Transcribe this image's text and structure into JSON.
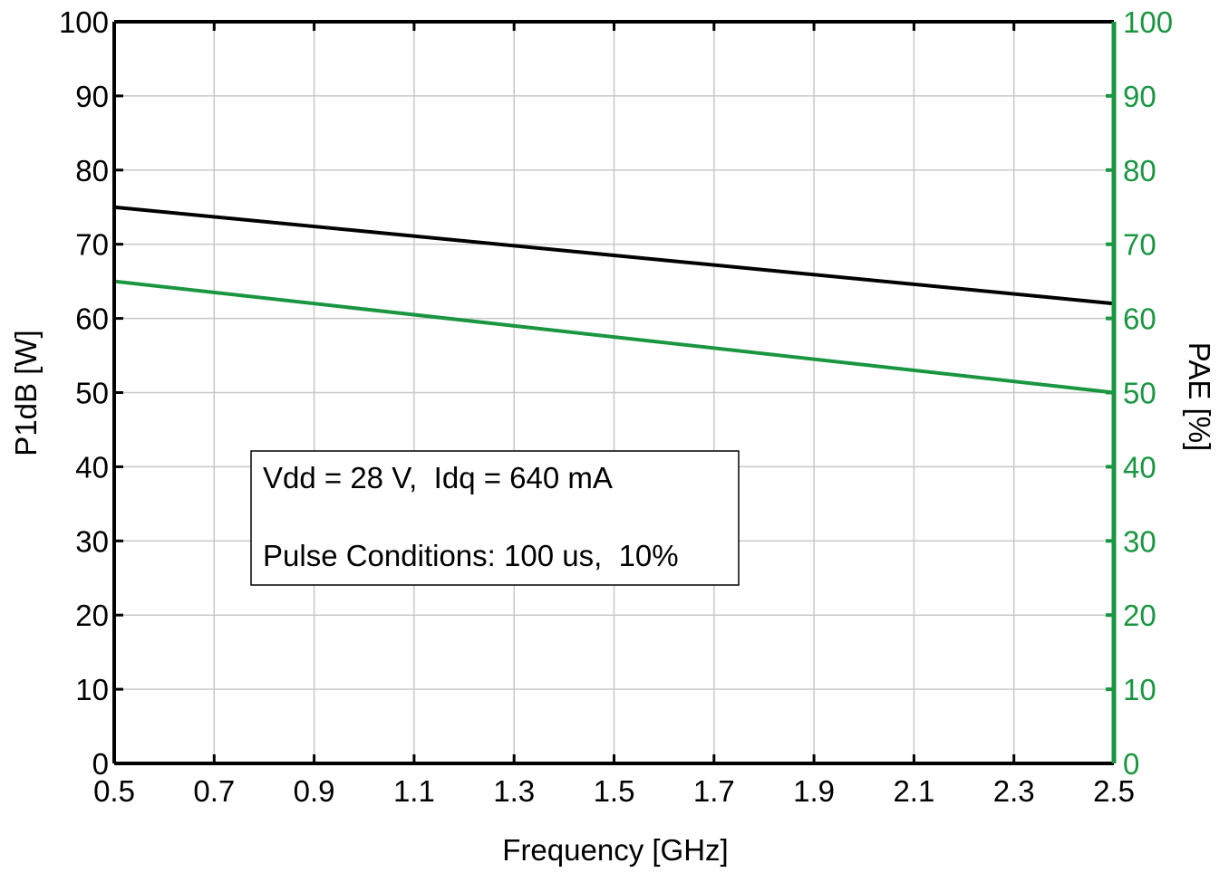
{
  "chart_data": {
    "type": "line",
    "xlabel": "Frequency [GHz]",
    "ylabel_left": "P1dB [W]",
    "ylabel_right": "PAE [%]",
    "xlim": [
      0.5,
      2.5
    ],
    "ylim_left": [
      0,
      100
    ],
    "ylim_right": [
      0,
      100
    ],
    "x_ticks": [
      "0.5",
      "0.7",
      "0.9",
      "1.1",
      "1.3",
      "1.5",
      "1.7",
      "1.9",
      "2.1",
      "2.3",
      "2.5"
    ],
    "y_ticks_left": [
      "0",
      "10",
      "20",
      "30",
      "40",
      "50",
      "60",
      "70",
      "80",
      "90",
      "100"
    ],
    "y_ticks_right": [
      "0",
      "10",
      "20",
      "30",
      "40",
      "50",
      "60",
      "70",
      "80",
      "90",
      "100"
    ],
    "grid": true,
    "series": [
      {
        "axis": "left",
        "color": "#000000",
        "x": [
          0.5,
          1.5,
          2.5
        ],
        "values": [
          75,
          68.5,
          62
        ]
      },
      {
        "axis": "right",
        "color": "#1a9641",
        "x": [
          0.5,
          1.5,
          2.5
        ],
        "values": [
          65,
          57.5,
          50
        ]
      }
    ],
    "annotations": [
      "Vdd = 28 V,  Idq = 640 mA",
      "Pulse Conditions: 100 us,  10%"
    ],
    "colors": {
      "left_axis": "#000000",
      "right_axis": "#1a9641",
      "grid": "#c8c8c8"
    }
  }
}
